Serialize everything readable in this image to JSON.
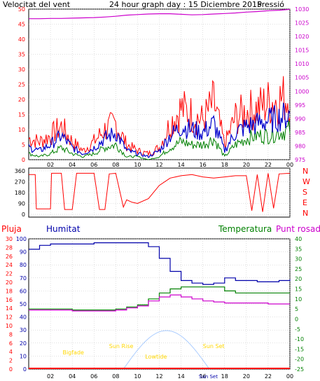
{
  "header": {
    "left_label": "Velocitat del vent",
    "title": "24 hour graph day : 15 Diciembre 2015",
    "right_label": "Pressió"
  },
  "colors": {
    "wind_gust": "#ff0000",
    "wind_avg": "#0000cc",
    "wind_min": "#008000",
    "pressure": "#cc00cc",
    "direction": "#ff0000",
    "humidity": "#0000aa",
    "temperature": "#008000",
    "dewpoint": "#cc00cc",
    "sun": "#aaccff",
    "markers": "#ffd700",
    "grid": "#c0c0c0"
  },
  "x_ticks": [
    "02",
    "04",
    "06",
    "08",
    "10",
    "12",
    "14",
    "16",
    "18",
    "20",
    "22",
    "00"
  ],
  "panel1": {
    "left_ticks": [
      "0",
      "5",
      "10",
      "15",
      "20",
      "25",
      "30",
      "35",
      "40",
      "45",
      "50"
    ],
    "right_ticks": [
      "975",
      "980",
      "985",
      "990",
      "995",
      "1000",
      "1005",
      "1010",
      "1015",
      "1020",
      "1025",
      "1030"
    ]
  },
  "panel2": {
    "left_ticks": [
      "0",
      "90",
      "180",
      "270",
      "360"
    ],
    "compass": [
      "N",
      "W",
      "S",
      "E",
      "N"
    ]
  },
  "panel3": {
    "labels": {
      "rain": "Pluja",
      "humidity": "Humitat",
      "temperature": "Temperatura",
      "dewpoint": "Punt rosada"
    },
    "rain_ticks": [
      "0",
      "2",
      "4",
      "6",
      "8",
      "10",
      "12",
      "14",
      "16",
      "18",
      "20",
      "22",
      "24",
      "26",
      "28",
      "30"
    ],
    "humidity_ticks": [
      "0",
      "10",
      "20",
      "30",
      "40",
      "50",
      "60",
      "70",
      "80",
      "90",
      "100"
    ],
    "temp_ticks": [
      "-25",
      "-20",
      "-15",
      "-10",
      "-5",
      "0",
      "5",
      "10",
      "15",
      "20",
      "25",
      "30",
      "35",
      "40"
    ],
    "markers": {
      "bigfade": "Bigfade",
      "sunrise": "Sun Rise",
      "lowtide": "Lowtide",
      "sunset": "Sun Set",
      "sunset_axis": "Sun Set"
    }
  },
  "chart_data": [
    {
      "type": "line",
      "title": "24 hour graph day : 15 Diciembre 2015",
      "x_hours": [
        0,
        1,
        2,
        3,
        4,
        5,
        6,
        7,
        8,
        9,
        10,
        11,
        12,
        13,
        14,
        15,
        16,
        17,
        18,
        19,
        20,
        21,
        22,
        23,
        24
      ],
      "ylim_left": [
        0,
        50
      ],
      "ylim_right": [
        975,
        1030
      ],
      "series": [
        {
          "name": "Velocitat del vent",
          "axis": "left",
          "values": [
            7,
            6,
            8,
            11,
            6,
            3,
            6,
            10,
            12,
            5,
            3,
            2,
            4,
            12,
            17,
            15,
            13,
            19,
            5,
            14,
            16,
            17,
            19,
            20,
            21
          ]
        },
        {
          "name": "",
          "axis": "left",
          "values": [
            4,
            3,
            5,
            8,
            4,
            2,
            4,
            7,
            9,
            3,
            2,
            1,
            3,
            8,
            11,
            10,
            9,
            12,
            3,
            9,
            11,
            12,
            13,
            14,
            15
          ]
        },
        {
          "name": "",
          "axis": "left",
          "values": [
            2,
            1,
            2,
            4,
            2,
            1,
            2,
            4,
            5,
            1,
            1,
            0,
            1,
            4,
            6,
            5,
            5,
            7,
            1,
            5,
            7,
            8,
            8,
            9,
            10
          ]
        },
        {
          "name": "Pressió",
          "axis": "right",
          "values": [
            1026.5,
            1026.5,
            1026.6,
            1026.6,
            1026.7,
            1026.8,
            1026.9,
            1027.1,
            1027.4,
            1027.8,
            1028.0,
            1028.2,
            1028.3,
            1028.3,
            1028.1,
            1027.9,
            1028.0,
            1028.2,
            1028.4,
            1028.6,
            1028.9,
            1029.1,
            1029.4,
            1029.6,
            1029.9
          ]
        }
      ]
    },
    {
      "type": "line",
      "x_hours": [
        0,
        0.6,
        0.7,
        1.5,
        2.0,
        2.1,
        3.0,
        3.3,
        4.0,
        4.4,
        5.0,
        6.0,
        6.5,
        7.0,
        7.4,
        8.0,
        8.7,
        9.0,
        9.5,
        10,
        11,
        12,
        13,
        14,
        15,
        16,
        17,
        18,
        19,
        20,
        20.5,
        21,
        21.5,
        22,
        22.5,
        23,
        24
      ],
      "ylim": [
        0,
        360
      ],
      "series": [
        {
          "name": "",
          "values": [
            330,
            330,
            45,
            45,
            45,
            340,
            340,
            40,
            40,
            340,
            340,
            340,
            40,
            40,
            335,
            340,
            60,
            120,
            100,
            90,
            130,
            240,
            300,
            320,
            330,
            310,
            300,
            310,
            320,
            320,
            30,
            330,
            20,
            340,
            50,
            335,
            340
          ]
        }
      ]
    },
    {
      "type": "line",
      "x_hours": [
        0,
        1,
        2,
        3,
        4,
        5,
        6,
        7,
        8,
        9,
        10,
        11,
        12,
        13,
        14,
        15,
        16,
        17,
        18,
        19,
        20,
        21,
        22,
        23,
        24
      ],
      "ylim_humidity": [
        0,
        100
      ],
      "ylim_temp": [
        -25,
        40
      ],
      "ylim_rain": [
        0,
        30
      ],
      "series": [
        {
          "name": "Humitat",
          "axis": "humidity",
          "values": [
            92,
            95,
            96,
            96,
            96,
            96,
            97,
            97,
            97,
            97,
            97,
            94,
            85,
            75,
            68,
            66,
            65,
            66,
            70,
            68,
            68,
            67,
            67,
            68,
            69
          ]
        },
        {
          "name": "Temperatura",
          "axis": "temp",
          "values": [
            5,
            5,
            5,
            5,
            4.5,
            4.5,
            4.5,
            4.5,
            5,
            6,
            7,
            10,
            13,
            15,
            16,
            16,
            16,
            16,
            14,
            13,
            13,
            13,
            13,
            13,
            13
          ]
        },
        {
          "name": "Punt rosada",
          "axis": "temp",
          "values": [
            4.5,
            4.5,
            4.5,
            4.5,
            4,
            4,
            4,
            4,
            4.5,
            5.5,
            6.5,
            9,
            11,
            12,
            11,
            10,
            9,
            8.5,
            8,
            8,
            8,
            8,
            7.5,
            7.5,
            7.5
          ]
        },
        {
          "name": "Pluja",
          "axis": "rain",
          "values": [
            0,
            0,
            0,
            0,
            0,
            0,
            0,
            0,
            0,
            0,
            0,
            0,
            0,
            0,
            0,
            0,
            0,
            0,
            0,
            0,
            0,
            0,
            0,
            0,
            0
          ]
        }
      ]
    }
  ]
}
